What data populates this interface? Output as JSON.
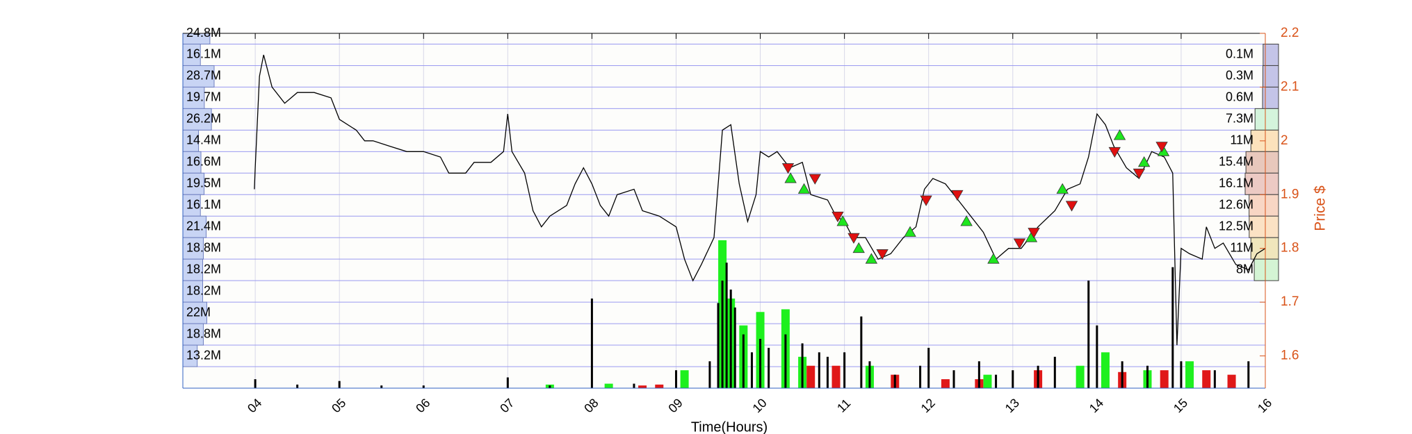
{
  "chart_data": {
    "type": "price-volume",
    "xlabel": "Time(Hours)",
    "xlim": [
      3.14,
      16
    ],
    "xticks": [
      {
        "value": 4,
        "label": "04"
      },
      {
        "value": 5,
        "label": "05"
      },
      {
        "value": 6,
        "label": "06"
      },
      {
        "value": 7,
        "label": "07"
      },
      {
        "value": 8,
        "label": "08"
      },
      {
        "value": 9,
        "label": "09"
      },
      10,
      11,
      12,
      13,
      14,
      15,
      16
    ],
    "y2lim": [
      1.54,
      2.2
    ],
    "y2ticks": [
      1.6,
      1.7,
      1.8,
      1.9,
      2,
      2.1,
      2.2
    ],
    "y2label": "Price $",
    "grid": true,
    "price": {
      "color": "#000000",
      "axis": "y2",
      "x": [
        3.99,
        4.0,
        4.05,
        4.1,
        4.2,
        4.35,
        4.5,
        4.7,
        4.9,
        5.0,
        5.2,
        5.3,
        5.4,
        5.6,
        5.8,
        6.0,
        6.2,
        6.3,
        6.5,
        6.6,
        6.8,
        6.95,
        7.0,
        7.05,
        7.2,
        7.3,
        7.4,
        7.5,
        7.7,
        7.8,
        7.9,
        8.0,
        8.1,
        8.2,
        8.3,
        8.5,
        8.6,
        8.8,
        9.0,
        9.1,
        9.2,
        9.3,
        9.45,
        9.55,
        9.65,
        9.75,
        9.85,
        9.95,
        10.0,
        10.1,
        10.2,
        10.35,
        10.5,
        10.6,
        10.8,
        10.9,
        11.0,
        11.1,
        11.25,
        11.4,
        11.55,
        11.7,
        11.85,
        11.95,
        12.05,
        12.2,
        12.35,
        12.5,
        12.65,
        12.8,
        12.95,
        13.1,
        13.3,
        13.5,
        13.65,
        13.8,
        13.9,
        14.0,
        14.1,
        14.2,
        14.35,
        14.5,
        14.65,
        14.8,
        14.9,
        14.95,
        15.0,
        15.1,
        15.25,
        15.3,
        15.4,
        15.5,
        15.65,
        15.8,
        15.9,
        16.0
      ],
      "values": [
        1.91,
        1.95,
        2.12,
        2.16,
        2.1,
        2.07,
        2.09,
        2.09,
        2.08,
        2.04,
        2.02,
        2.0,
        2.0,
        1.99,
        1.98,
        1.98,
        1.97,
        1.94,
        1.94,
        1.96,
        1.96,
        1.98,
        2.05,
        1.98,
        1.94,
        1.87,
        1.84,
        1.86,
        1.88,
        1.92,
        1.95,
        1.92,
        1.88,
        1.86,
        1.9,
        1.91,
        1.87,
        1.86,
        1.84,
        1.78,
        1.74,
        1.77,
        1.82,
        2.02,
        2.03,
        1.92,
        1.85,
        1.9,
        1.98,
        1.97,
        1.98,
        1.95,
        1.96,
        1.9,
        1.89,
        1.86,
        1.85,
        1.82,
        1.82,
        1.78,
        1.79,
        1.82,
        1.84,
        1.91,
        1.93,
        1.92,
        1.89,
        1.86,
        1.83,
        1.78,
        1.8,
        1.8,
        1.84,
        1.87,
        1.91,
        1.92,
        1.97,
        2.05,
        2.03,
        1.99,
        1.95,
        1.93,
        1.98,
        1.97,
        1.94,
        1.62,
        1.8,
        1.79,
        1.78,
        1.84,
        1.8,
        1.81,
        1.77,
        1.76,
        1.79,
        1.8
      ]
    },
    "buy_signals": {
      "color": "#1ee61e",
      "axis": "y2",
      "x": [
        10.36,
        10.52,
        10.98,
        11.17,
        11.32,
        11.78,
        12.45,
        12.77,
        13.22,
        13.59,
        14.27,
        14.56,
        14.79
      ],
      "values": [
        1.93,
        1.91,
        1.85,
        1.8,
        1.78,
        1.83,
        1.85,
        1.78,
        1.82,
        1.91,
        2.01,
        1.96,
        1.98
      ]
    },
    "sell_signals": {
      "color": "#e01010",
      "axis": "y2",
      "x": [
        10.33,
        10.65,
        10.92,
        11.11,
        11.45,
        11.97,
        12.34,
        13.08,
        13.25,
        13.7,
        14.21,
        14.5,
        14.77
      ],
      "values": [
        1.95,
        1.93,
        1.86,
        1.82,
        1.79,
        1.89,
        1.9,
        1.81,
        1.83,
        1.88,
        1.98,
        1.94,
        1.99
      ]
    },
    "volume": [
      {
        "color": "#1ef01e",
        "x": [
          7.5,
          8.2,
          9.1,
          9.55,
          9.65,
          9.8,
          10.0,
          10.3,
          10.5,
          11.3,
          12.7,
          13.8,
          14.1,
          14.6,
          15.1
        ],
        "values": [
          4,
          5,
          20,
          165,
          100,
          70,
          85,
          88,
          35,
          25,
          15,
          25,
          40,
          20,
          30
        ]
      },
      {
        "color": "#e01818",
        "x": [
          8.6,
          8.8,
          10.6,
          10.9,
          11.6,
          12.2,
          12.6,
          13.3,
          14.3,
          14.8,
          15.3,
          15.6
        ],
        "values": [
          3,
          4,
          25,
          25,
          15,
          10,
          10,
          20,
          18,
          20,
          20,
          15
        ]
      },
      {
        "color": "#000000",
        "x": [
          4.0,
          4.5,
          5.0,
          5.5,
          6.0,
          7.0,
          7.5,
          8.0,
          8.5,
          9.0,
          9.4,
          9.5,
          9.55,
          9.6,
          9.65,
          9.7,
          9.8,
          9.9,
          10.0,
          10.1,
          10.3,
          10.5,
          10.7,
          10.8,
          11.0,
          11.2,
          11.3,
          11.6,
          11.9,
          12.0,
          12.3,
          12.6,
          12.8,
          13.0,
          13.3,
          13.5,
          13.9,
          14.0,
          14.3,
          14.6,
          14.9,
          15.0,
          15.4,
          15.8
        ],
        "values": [
          10,
          4,
          8,
          3,
          3,
          12,
          3,
          100,
          5,
          20,
          30,
          95,
          120,
          140,
          110,
          90,
          60,
          40,
          55,
          45,
          60,
          50,
          40,
          35,
          40,
          80,
          30,
          15,
          25,
          45,
          20,
          30,
          15,
          20,
          25,
          35,
          120,
          70,
          30,
          25,
          135,
          30,
          20,
          30
        ]
      }
    ],
    "volume_profile_left": {
      "color": "#c8d4f4",
      "bins": [
        2.22,
        2.18,
        2.14,
        2.1,
        2.06,
        2.02,
        1.98,
        1.94,
        1.9,
        1.86,
        1.82,
        1.78,
        1.74,
        1.7,
        1.66,
        1.62,
        1.58
      ],
      "values": [
        24.8,
        16.1,
        28.7,
        19.7,
        26.2,
        14.4,
        16.6,
        19.5,
        16.1,
        21.4,
        18.8,
        18.2,
        18.2,
        22,
        18.8,
        13.2
      ],
      "value_labels": [
        "24.8M",
        "16.1M",
        "28.7M",
        "19.7M",
        "26.2M",
        "14.4M",
        "16.6M",
        "19.5M",
        "16.1M",
        "21.4M",
        "18.8M",
        "18.2M",
        "18.2M",
        "22M",
        "18.8M",
        "13.2M"
      ]
    },
    "volume_profile_right": {
      "bins": [
        2.18,
        2.14,
        2.1,
        2.06,
        2.02,
        1.98,
        1.94,
        1.9,
        1.86,
        1.82,
        1.78,
        1.74
      ],
      "values": [
        0.1,
        0.3,
        0.6,
        7.3,
        11,
        15.4,
        16.1,
        12.6,
        12.5,
        11,
        8
      ],
      "value_labels": [
        "0.1M",
        "0.3M",
        "0.6M",
        "7.3M",
        "11M",
        "15.4M",
        "16.1M",
        "12.6M",
        "12.5M",
        "11M",
        "8M"
      ],
      "colors": [
        "#c4c4e8",
        "#c4c4e8",
        "#c4c4e8",
        "#d4f4dc",
        "#fce2bc",
        "#e8c8bc",
        "#eccac4",
        "#f8d6c4",
        "#fbe2c4",
        "#f0e6bc",
        "#d4f4d4"
      ]
    }
  }
}
